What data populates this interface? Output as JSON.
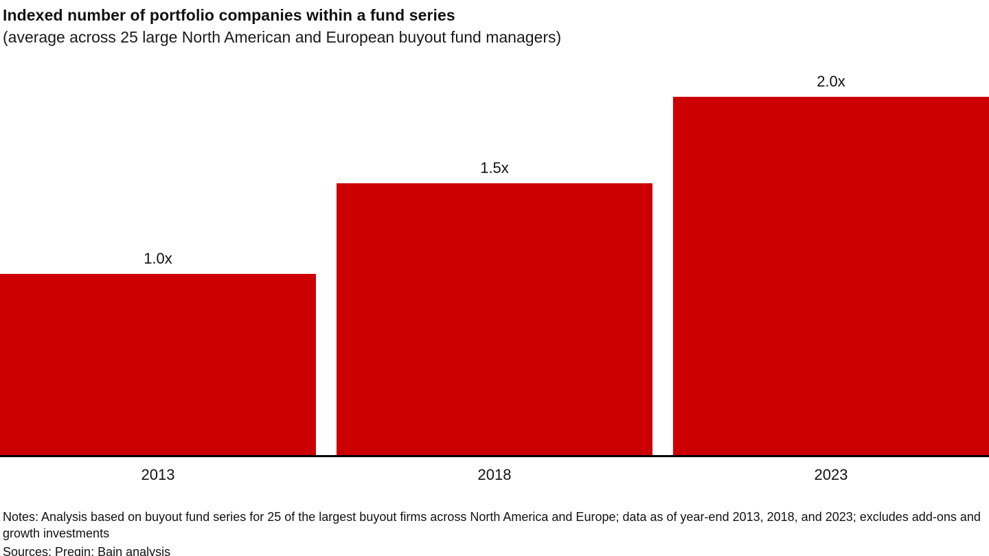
{
  "header": {
    "title": "Indexed number of portfolio companies within a fund series",
    "subtitle": "(average across 25 large North American and European buyout fund managers)"
  },
  "chart_data": {
    "type": "bar",
    "title": "Indexed number of portfolio companies within a fund series",
    "subtitle": "(average across 25 large North American and European buyout fund managers)",
    "categories": [
      "2013",
      "2018",
      "2023"
    ],
    "values": [
      1.0,
      1.5,
      2.0
    ],
    "value_labels": [
      "1.0x",
      "1.5x",
      "2.0x"
    ],
    "xlabel": "",
    "ylabel": "Indexed number of portfolio companies",
    "ylim": [
      0,
      2.0
    ],
    "grid": false,
    "legend": false,
    "bar_color": "#cc0000",
    "axis_color": "#000000"
  },
  "footer": {
    "notes": "Notes: Analysis based on buyout fund series for 25 of the largest buyout firms across North America and Europe; data as of year-end 2013, 2018, and 2023; excludes add-ons and growth investments",
    "sources": "Sources: Preqin; Bain analysis"
  }
}
